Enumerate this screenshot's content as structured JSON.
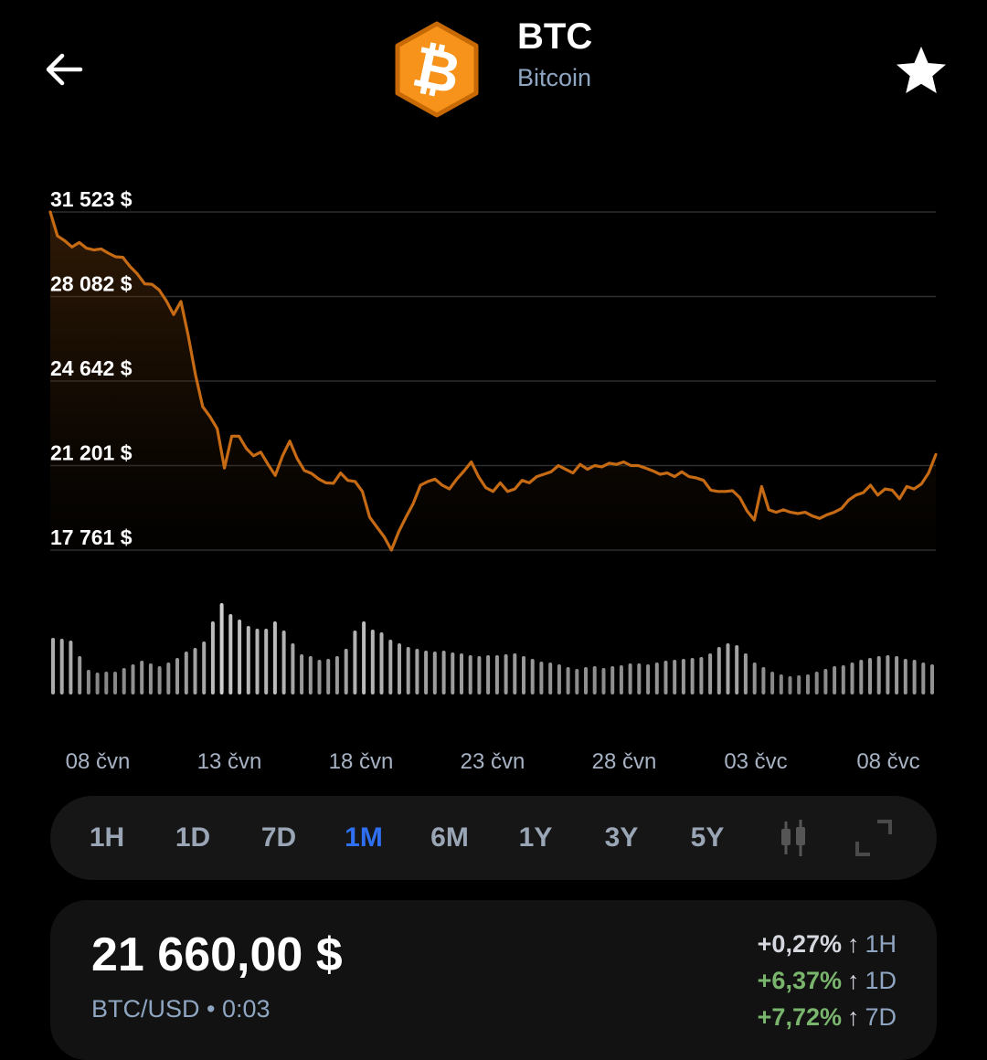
{
  "header": {
    "symbol": "BTC",
    "name": "Bitcoin",
    "logo_color": "#f7931a"
  },
  "icons": {
    "back": "arrow-left-icon",
    "favorite": "star-icon",
    "candles": "candlestick-icon",
    "fullscreen": "fullscreen-icon"
  },
  "chart_data": {
    "type": "line",
    "line_color": "#c66b14",
    "y_ticks": [
      "31 523 $",
      "28 082 $",
      "24 642 $",
      "21 201 $",
      "17 761 $"
    ],
    "y_tick_values": [
      31523,
      28082,
      24642,
      21201,
      17761
    ],
    "ylim": [
      17761,
      31523
    ],
    "x_ticks": [
      "08 čvn",
      "13 čvn",
      "18 čvn",
      "23 čvn",
      "28 čvn",
      "03 čvc",
      "08 čvc"
    ],
    "grid": true,
    "series": [
      {
        "values": [
          31523,
          30550,
          30350,
          30100,
          30280,
          30050,
          29980,
          30020,
          29850,
          29700,
          29680,
          29300,
          29000,
          28600,
          28580,
          28350,
          27900,
          27350,
          27880,
          26500,
          24900,
          23600,
          23200,
          22700,
          21100,
          22400,
          22400,
          21900,
          21600,
          21750,
          21250,
          20800,
          21600,
          22200,
          21500,
          21000,
          20880,
          20650,
          20500,
          20480,
          20900,
          20600,
          20550,
          20150,
          19100,
          18700,
          18300,
          17761,
          18500,
          19100,
          19650,
          20400,
          20550,
          20650,
          20400,
          20250,
          20650,
          20980,
          21350,
          20750,
          20300,
          20150,
          20500,
          20150,
          20250,
          20600,
          20500,
          20750,
          20850,
          20950,
          21200,
          21050,
          20900,
          21250,
          21050,
          21200,
          21150,
          21300,
          21250,
          21350,
          21200,
          21200,
          21100,
          20990,
          20850,
          20900,
          20750,
          20950,
          20750,
          20700,
          20600,
          20200,
          20150,
          20150,
          20180,
          19900,
          19350,
          18990,
          20350,
          19400,
          19300,
          19400,
          19300,
          19250,
          19300,
          19150,
          19050,
          19200,
          19300,
          19450,
          19800,
          20000,
          20100,
          20400,
          20000,
          20250,
          20200,
          19850,
          20350,
          20250,
          20450,
          20900,
          21650
        ]
      }
    ],
    "volume_color": "#cfcfcf",
    "volumes": [
      0.62,
      0.61,
      0.59,
      0.42,
      0.27,
      0.24,
      0.25,
      0.25,
      0.29,
      0.33,
      0.37,
      0.34,
      0.31,
      0.35,
      0.4,
      0.47,
      0.51,
      0.58,
      0.8,
      1.0,
      0.88,
      0.82,
      0.75,
      0.72,
      0.72,
      0.8,
      0.7,
      0.56,
      0.44,
      0.42,
      0.38,
      0.39,
      0.42,
      0.5,
      0.7,
      0.8,
      0.71,
      0.68,
      0.6,
      0.56,
      0.52,
      0.5,
      0.48,
      0.47,
      0.48,
      0.46,
      0.45,
      0.43,
      0.42,
      0.43,
      0.43,
      0.44,
      0.45,
      0.42,
      0.39,
      0.36,
      0.35,
      0.33,
      0.3,
      0.28,
      0.3,
      0.31,
      0.29,
      0.31,
      0.32,
      0.34,
      0.34,
      0.33,
      0.35,
      0.37,
      0.38,
      0.39,
      0.4,
      0.41,
      0.45,
      0.52,
      0.56,
      0.54,
      0.45,
      0.35,
      0.3,
      0.25,
      0.22,
      0.2,
      0.21,
      0.22,
      0.25,
      0.28,
      0.31,
      0.32,
      0.35,
      0.38,
      0.4,
      0.42,
      0.43,
      0.42,
      0.39,
      0.38,
      0.35,
      0.33
    ]
  },
  "ranges": {
    "items": [
      "1H",
      "1D",
      "7D",
      "1M",
      "6M",
      "1Y",
      "3Y",
      "5Y"
    ],
    "active": "1M",
    "active_color": "#2f6ff2"
  },
  "price_card": {
    "price": "21 660,00 $",
    "pair": "BTC/USD • 0:03",
    "changes": [
      {
        "value": "+0,27%",
        "arrow": "↑",
        "period": "1H",
        "color": "#d4d8de"
      },
      {
        "value": "+6,37%",
        "arrow": "↑",
        "period": "1D",
        "color": "#7ab56e"
      },
      {
        "value": "+7,72%",
        "arrow": "↑",
        "period": "7D",
        "color": "#7ab56e"
      }
    ]
  }
}
